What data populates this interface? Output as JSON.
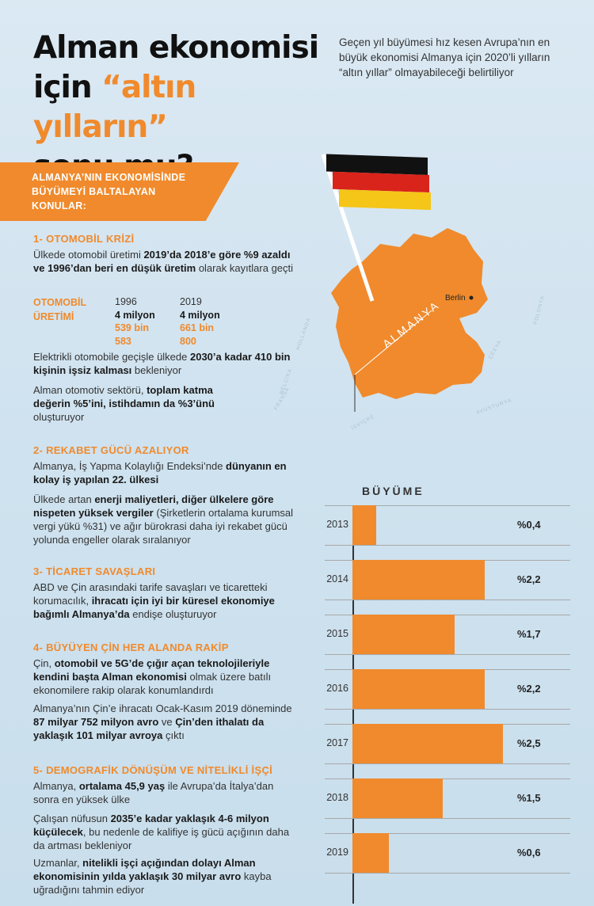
{
  "header": {
    "title_line1": "Alman ekonomisi",
    "title_line2_pre": "için ",
    "title_line2_hl": "“altın yılların”",
    "title_line3": "sonu mu?",
    "subtitle": "Geçen yıl büyümesi hız kesen Avrupa’nın en büyük ekonomisi Almanya için 2020’li yılların “altın yıllar” olmayabileceği belirtiliyor"
  },
  "banner": {
    "line1": "ALMANYA’NIN EKONOMİSİNDE",
    "line2": "BÜYÜMEYİ BALTALAYAN",
    "line3": "KONULAR:"
  },
  "sections": {
    "s1": {
      "heading": "1- OTOMOBİL KRİZİ",
      "p1a": "Ülkede otomobil üretimi ",
      "p1b": "2019’da 2018’e göre %9 azaldı ve 1996’dan beri en düşük üretim",
      "p1c": " olarak kayıtlara geçti",
      "stat_label_1": "OTOMOBİL",
      "stat_label_2": "ÜRETİMİ",
      "col1": {
        "year": "1996",
        "mil": "4 milyon",
        "a": "539 bin",
        "b": "583"
      },
      "col2": {
        "year": "2019",
        "mil": "4 milyon",
        "a": "661 bin",
        "b": "800"
      },
      "p2a": "Elektrikli otomobile geçişle ülkede ",
      "p2b": "2030’a kadar 410 bin kişinin işsiz kalması",
      "p2c": " bekleniyor",
      "p3a": "Alman otomotiv sektörü, ",
      "p3b": "toplam katma değerin %5’ini, istihdamın da %3’ünü",
      "p3c": " oluşturuyor"
    },
    "s2": {
      "heading": "2- REKABET GÜCÜ AZALIYOR",
      "p1a": "Almanya, İş Yapma Kolaylığı Endeksi’nde ",
      "p1b": "dünyanın en kolay iş yapılan 22. ülkesi",
      "p2a": "Ülkede artan ",
      "p2b": "enerji maliyetleri, diğer ülkelere göre nispeten yüksek vergiler",
      "p2c": " (Şirketlerin ortalama kurumsal vergi yükü %31) ve ağır bürokrasi daha iyi rekabet gücü yolunda engeller olarak sıralanıyor"
    },
    "s3": {
      "heading": "3- TİCARET SAVAŞLARI",
      "p1a": "ABD ve Çin arasındaki tarife savaşları ve ticaretteki korumacılık, ",
      "p1b": "ihracatı için iyi bir küresel ekonomiye bağımlı Almanya’da",
      "p1c": " endişe oluşturuyor"
    },
    "s4": {
      "heading": "4- BÜYÜYEN ÇİN HER ALANDA RAKİP",
      "p1a": "Çin, ",
      "p1b": "otomobil ve 5G’de çığır açan teknolojileriyle kendini başta Alman ekonomisi",
      "p1c": " olmak üzere batılı ekonomilere rakip olarak konumlandırdı",
      "p2a": "Almanya’nın Çin’e ihracatı Ocak-Kasım 2019 döneminde ",
      "p2b": "87 milyar 752 milyon avro",
      "p2c": " ve ",
      "p2d": "Çin’den ithalatı da yaklaşık 101 milyar avroya",
      "p2e": " çıktı"
    },
    "s5": {
      "heading": "5- DEMOGRAFİK DÖNÜŞÜM VE NİTELİKLİ İŞÇİ",
      "p1a": "Almanya, ",
      "p1b": "ortalama 45,9 yaş",
      "p1c": " ile Avrupa’da İtalya’dan sonra en yüksek ülke",
      "p2a": "Çalışan nüfusun ",
      "p2b": "2035’e kadar yaklaşık 4-6 milyon küçülecek",
      "p2c": ", bu nedenle de kalifiye iş gücü açığının daha da artması bekleniyor",
      "p3a": "Uzmanlar, ",
      "p3b": "nitelikli işçi açığından dolayı Alman ekonomisinin yılda yaklaşık 30 milyar avro",
      "p3c": " kayba uğradığını tahmin ediyor"
    }
  },
  "map": {
    "country_label": "ALMANYA",
    "city_label": "Berlin",
    "neighbors": [
      "HOLLANDA",
      "BELÇİKA",
      "FRANSA",
      "İSVİÇRE",
      "AVUSTURYA",
      "ÇEKYA",
      "POLONYA"
    ],
    "flag_colors": [
      "#111111",
      "#d9241b",
      "#f5c518"
    ],
    "country_color": "#f08a2c"
  },
  "chart_data": {
    "type": "bar",
    "orientation": "horizontal",
    "title": "BÜYÜME",
    "categories": [
      "2013",
      "2014",
      "2015",
      "2016",
      "2017",
      "2018",
      "2019"
    ],
    "values": [
      0.4,
      2.2,
      1.7,
      2.2,
      2.5,
      1.5,
      0.6
    ],
    "value_labels": [
      "%0,4",
      "%2,2",
      "%1,7",
      "%2,2",
      "%2,5",
      "%1,5",
      "%0,6"
    ],
    "xlim": [
      0,
      2.5
    ],
    "bar_color": "#f08a2c"
  }
}
